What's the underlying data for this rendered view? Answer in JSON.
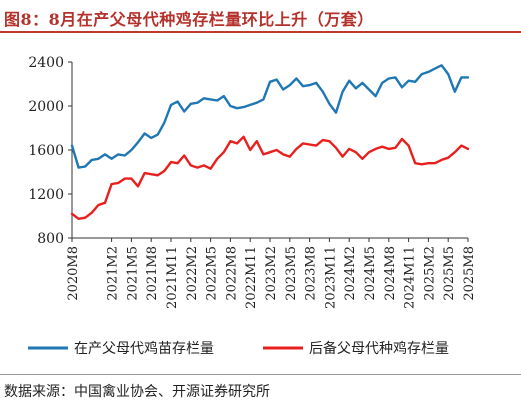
{
  "figure": {
    "title": "图8：8月在产父母代种鸡存栏量环比上升（万套）",
    "source": "数据来源：中国禽业协会、开源证券研究所"
  },
  "colors": {
    "title": "#b5312b",
    "series_blue": "#1f77b4",
    "series_red": "#e8201d"
  },
  "chart_data": {
    "type": "line",
    "title": "",
    "xlabel": "",
    "ylabel": "",
    "ylim": [
      800,
      2400
    ],
    "yticks": [
      800,
      1200,
      1600,
      2000,
      2400
    ],
    "grid": false,
    "legend_position": "bottom",
    "x": [
      "2020M8",
      "2020M9",
      "2020M10",
      "2020M11",
      "2020M12",
      "2021M1",
      "2021M2",
      "2021M3",
      "2021M4",
      "2021M5",
      "2021M6",
      "2021M7",
      "2021M8",
      "2021M9",
      "2021M10",
      "2021M11",
      "2021M12",
      "2022M1",
      "2022M2",
      "2022M3",
      "2022M4",
      "2022M5",
      "2022M6",
      "2022M7",
      "2022M8",
      "2022M9",
      "2022M10",
      "2022M11",
      "2022M12",
      "2023M1",
      "2023M2",
      "2023M3",
      "2023M4",
      "2023M5",
      "2023M6",
      "2023M7",
      "2023M8",
      "2023M9",
      "2023M10",
      "2023M11",
      "2023M12",
      "2024M1",
      "2024M2",
      "2024M3",
      "2024M4",
      "2024M5",
      "2024M6",
      "2024M7",
      "2024M8",
      "2024M9",
      "2024M10",
      "2024M11",
      "2024M12",
      "2025M1",
      "2025M2",
      "2025M3",
      "2025M4",
      "2025M5",
      "2025M6",
      "2025M7",
      "2025M8"
    ],
    "xticks": [
      "2020M8",
      "2021M2",
      "2021M5",
      "2021M8",
      "2021M11",
      "2022M2",
      "2022M5",
      "2022M8",
      "2022M11",
      "2023M2",
      "2023M5",
      "2023M8",
      "2023M11",
      "2024M2",
      "2024M5",
      "2024M8",
      "2024M11",
      "2025M2",
      "2025M5",
      "2025M8"
    ],
    "series": [
      {
        "name": "在产父母代鸡苗存栏量",
        "color": "#1f77b4",
        "values": [
          1640,
          1440,
          1450,
          1510,
          1520,
          1560,
          1520,
          1560,
          1550,
          1600,
          1670,
          1750,
          1710,
          1740,
          1850,
          2010,
          2040,
          1950,
          2020,
          2030,
          2070,
          2060,
          2050,
          2090,
          2000,
          1980,
          1990,
          2010,
          2030,
          2060,
          2220,
          2240,
          2150,
          2190,
          2250,
          2180,
          2190,
          2210,
          2130,
          2020,
          1940,
          2130,
          2230,
          2160,
          2210,
          2150,
          2090,
          2210,
          2250,
          2260,
          2170,
          2230,
          2220,
          2290,
          2310,
          2340,
          2370,
          2290,
          2130,
          2260,
          2260
        ]
      },
      {
        "name": "后备父母代种鸡存栏量",
        "color": "#e8201d",
        "values": [
          1020,
          975,
          985,
          1030,
          1100,
          1120,
          1290,
          1300,
          1340,
          1340,
          1270,
          1390,
          1380,
          1370,
          1410,
          1490,
          1480,
          1550,
          1460,
          1440,
          1460,
          1430,
          1520,
          1580,
          1680,
          1660,
          1720,
          1600,
          1680,
          1560,
          1580,
          1600,
          1560,
          1540,
          1610,
          1660,
          1650,
          1640,
          1690,
          1680,
          1620,
          1540,
          1610,
          1580,
          1520,
          1580,
          1610,
          1630,
          1610,
          1620,
          1700,
          1640,
          1480,
          1470,
          1480,
          1480,
          1510,
          1530,
          1580,
          1640,
          1610
        ]
      }
    ]
  }
}
